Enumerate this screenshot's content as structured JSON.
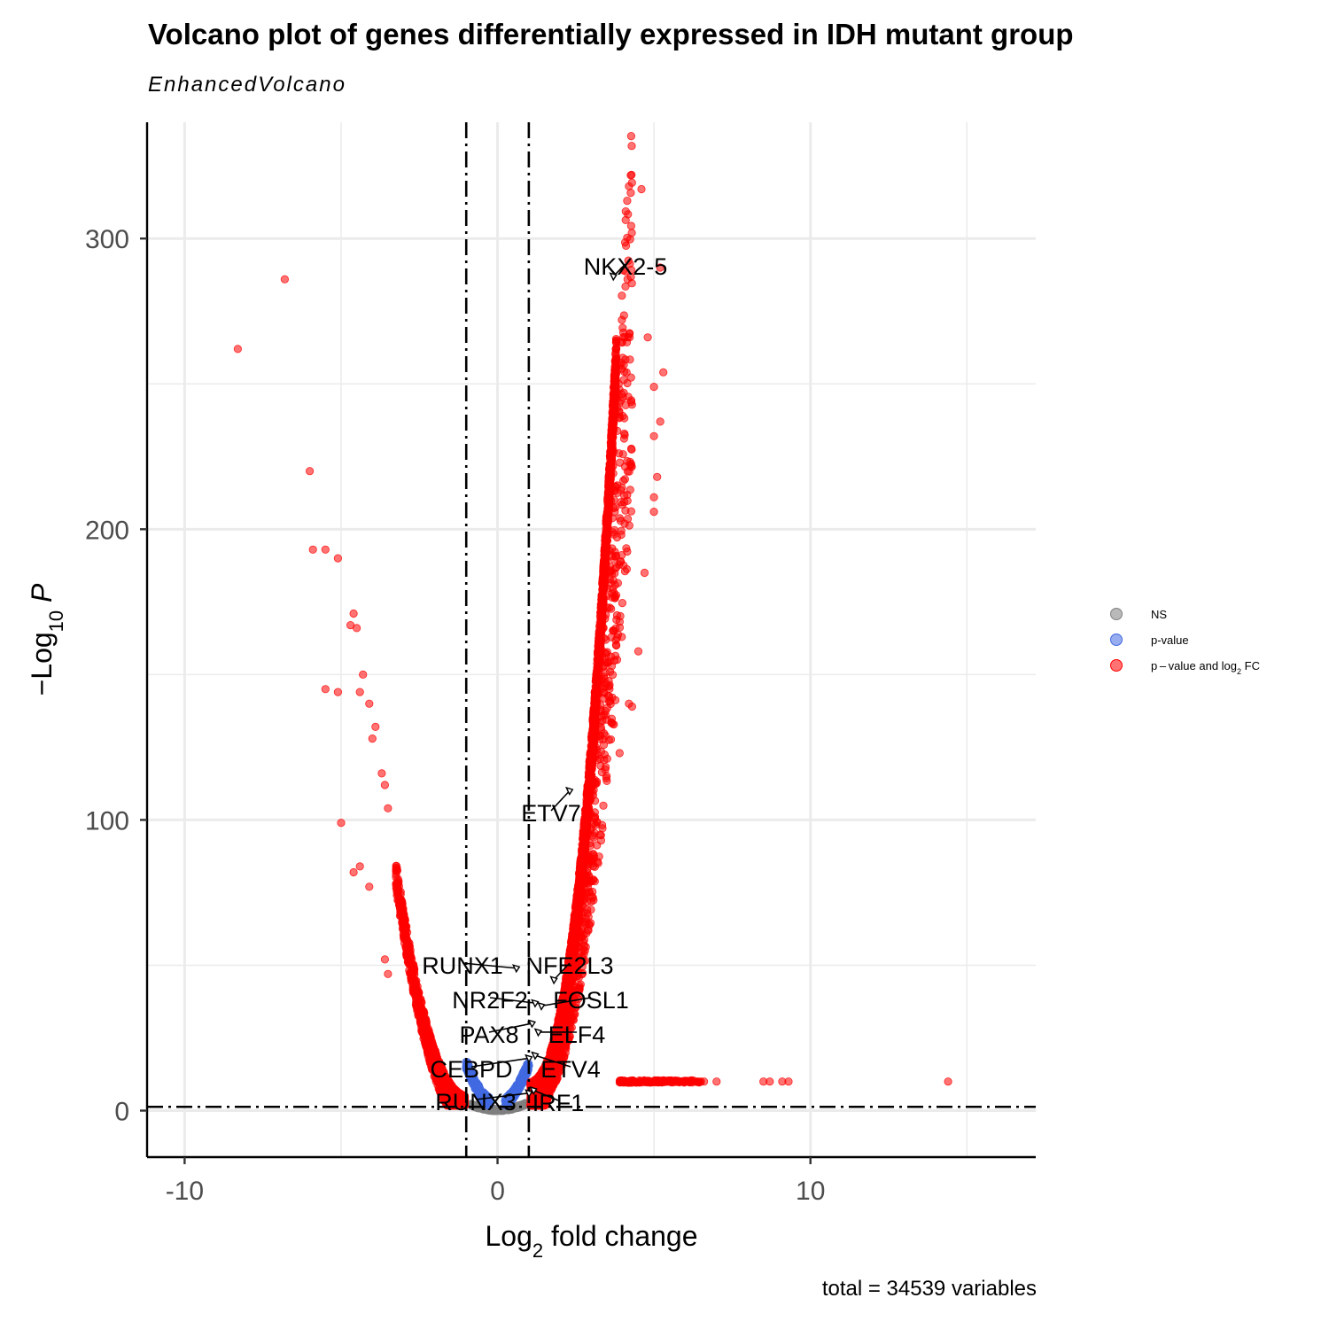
{
  "chart_data": {
    "type": "scatter",
    "title": "Volcano plot of genes differentially expressed in IDH mutant group",
    "subtitle": "EnhancedVolcano",
    "caption": "total = 34539 variables",
    "xlabel": {
      "base": "Log",
      "sub": "2",
      "rest": " fold change"
    },
    "ylabel": {
      "base": "−Log",
      "sub": "10",
      "rest": " P"
    },
    "xlim": [
      -11.2,
      17.2
    ],
    "ylim": [
      -16,
      340
    ],
    "xticks": [
      -10,
      0,
      10
    ],
    "xtick_labels": [
      "-10",
      "0",
      "10"
    ],
    "yticks": [
      0,
      100,
      200,
      300
    ],
    "ytick_labels": [
      "0",
      "100",
      "200",
      "300"
    ],
    "grid": true,
    "fc_cutoff": [
      -1,
      1
    ],
    "p_cutoff": 1.3,
    "legend_position": "right",
    "colors": {
      "NS": "#808080",
      "p": "#4169e1",
      "both": "#ff0000",
      "grid": "#ebebeb",
      "label": "#000000"
    },
    "legend": [
      {
        "key": "NS",
        "text": "NS",
        "color": "#808080"
      },
      {
        "key": "p",
        "text": "p-value",
        "color": "#4169e1"
      },
      {
        "key": "both",
        "text_pre": "p – value and log",
        "text_sub": "2",
        "text_post": " FC",
        "color": "#ff0000"
      }
    ],
    "outliers": [
      [
        -8.3,
        262
      ],
      [
        -6.8,
        286
      ],
      [
        -6.0,
        220
      ],
      [
        -5.9,
        193
      ],
      [
        -5.5,
        193
      ],
      [
        -5.1,
        190
      ],
      [
        -5.5,
        145
      ],
      [
        -5.1,
        144
      ],
      [
        -4.7,
        167
      ],
      [
        -4.6,
        171
      ],
      [
        -4.5,
        166
      ],
      [
        -4.4,
        144
      ],
      [
        -4.3,
        150
      ],
      [
        -4.1,
        140
      ],
      [
        -4.0,
        128
      ],
      [
        -3.9,
        132
      ],
      [
        -3.7,
        116
      ],
      [
        -3.6,
        112
      ],
      [
        -3.5,
        104
      ],
      [
        -5.0,
        99
      ],
      [
        -4.6,
        82
      ],
      [
        -4.4,
        84
      ],
      [
        -4.1,
        77
      ],
      [
        -3.6,
        52
      ],
      [
        -3.5,
        47
      ],
      [
        4.6,
        317
      ],
      [
        4.2,
        318
      ],
      [
        5.2,
        290
      ],
      [
        4.8,
        266
      ],
      [
        5.0,
        249
      ],
      [
        5.3,
        254
      ],
      [
        5.0,
        232
      ],
      [
        5.2,
        237
      ],
      [
        5.1,
        218
      ],
      [
        5.0,
        206
      ],
      [
        5.0,
        211
      ],
      [
        4.7,
        185
      ],
      [
        4.5,
        158
      ],
      [
        4.2,
        140
      ],
      [
        4.3,
        139
      ],
      [
        3.9,
        123
      ],
      [
        14.4,
        10
      ]
    ],
    "highlighted_genes": [
      {
        "name": "NKX2-5",
        "x": 3.7,
        "y": 287
      },
      {
        "name": "ETV7",
        "x": 2.3,
        "y": 110
      },
      {
        "name": "RUNX1",
        "x": 0.6,
        "y": 49
      },
      {
        "name": "NFE2L3",
        "x": 1.8,
        "y": 45
      },
      {
        "name": "NR2F2",
        "x": 1.2,
        "y": 37
      },
      {
        "name": "FOSL1",
        "x": 1.4,
        "y": 36
      },
      {
        "name": "PAX8",
        "x": 1.1,
        "y": 30
      },
      {
        "name": "ELF4",
        "x": 1.3,
        "y": 27
      },
      {
        "name": "CEBPD",
        "x": 1.0,
        "y": 18
      },
      {
        "name": "ETV4",
        "x": 1.2,
        "y": 19
      },
      {
        "name": "RUNX3",
        "x": 1.0,
        "y": 6
      },
      {
        "name": "IRF1",
        "x": 1.15,
        "y": 7
      }
    ]
  }
}
